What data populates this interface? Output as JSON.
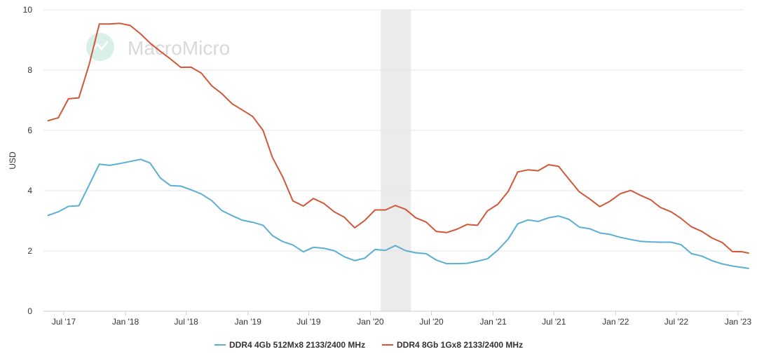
{
  "watermark": {
    "text": "MacroMicro",
    "icon": "macromicro-logo-icon"
  },
  "colors": {
    "series_4gb": "#5aafd2",
    "series_8gb": "#d1573a",
    "grid": "#e6e6e6",
    "shade": "#ebebeb"
  },
  "chart_data": {
    "type": "line",
    "title": "",
    "xlabel": "",
    "ylabel": "USD",
    "ylim": [
      0,
      10
    ],
    "yticks": [
      0,
      2,
      4,
      6,
      8,
      10
    ],
    "xlim": [
      "2017-05",
      "2023-02"
    ],
    "xticks": [
      {
        "date": "2017-07",
        "label": "Jul '17"
      },
      {
        "date": "2018-01",
        "label": "Jan '18"
      },
      {
        "date": "2018-07",
        "label": "Jul '18"
      },
      {
        "date": "2019-01",
        "label": "Jan '19"
      },
      {
        "date": "2019-07",
        "label": "Jul '19"
      },
      {
        "date": "2020-01",
        "label": "Jan '20"
      },
      {
        "date": "2020-07",
        "label": "Jul '20"
      },
      {
        "date": "2021-01",
        "label": "Jan '21"
      },
      {
        "date": "2021-07",
        "label": "Jul '21"
      },
      {
        "date": "2022-01",
        "label": "Jan '22"
      },
      {
        "date": "2022-07",
        "label": "Jul '22"
      },
      {
        "date": "2023-01",
        "label": "Jan '23"
      }
    ],
    "grid": true,
    "legend_position": "bottom",
    "shaded_region": {
      "start": "2020-02",
      "end": "2020-05"
    },
    "series": [
      {
        "name": "DDR4 4Gb 512Mx8 2133/2400 MHz",
        "color": "#5aafd2",
        "points": [
          [
            "2017-05-15",
            3.18
          ],
          [
            "2017-06-15",
            3.3
          ],
          [
            "2017-07-15",
            3.48
          ],
          [
            "2017-08-15",
            3.5
          ],
          [
            "2017-09-15",
            4.2
          ],
          [
            "2017-10-15",
            4.88
          ],
          [
            "2017-11-15",
            4.84
          ],
          [
            "2017-12-15",
            4.9
          ],
          [
            "2018-01-15",
            4.97
          ],
          [
            "2018-02-15",
            5.04
          ],
          [
            "2018-03-15",
            4.92
          ],
          [
            "2018-04-15",
            4.42
          ],
          [
            "2018-05-15",
            4.17
          ],
          [
            "2018-06-15",
            4.15
          ],
          [
            "2018-07-15",
            4.03
          ],
          [
            "2018-08-15",
            3.89
          ],
          [
            "2018-09-15",
            3.67
          ],
          [
            "2018-10-15",
            3.34
          ],
          [
            "2018-11-15",
            3.17
          ],
          [
            "2018-12-15",
            3.02
          ],
          [
            "2019-01-15",
            2.95
          ],
          [
            "2019-02-15",
            2.85
          ],
          [
            "2019-03-15",
            2.51
          ],
          [
            "2019-04-15",
            2.31
          ],
          [
            "2019-05-15",
            2.2
          ],
          [
            "2019-06-15",
            1.97
          ],
          [
            "2019-07-15",
            2.12
          ],
          [
            "2019-08-15",
            2.09
          ],
          [
            "2019-09-15",
            2.01
          ],
          [
            "2019-10-15",
            1.81
          ],
          [
            "2019-11-15",
            1.68
          ],
          [
            "2019-12-15",
            1.76
          ],
          [
            "2020-01-15",
            2.05
          ],
          [
            "2020-02-15",
            2.02
          ],
          [
            "2020-03-15",
            2.18
          ],
          [
            "2020-04-15",
            2.01
          ],
          [
            "2020-05-15",
            1.94
          ],
          [
            "2020-06-15",
            1.91
          ],
          [
            "2020-07-15",
            1.7
          ],
          [
            "2020-08-15",
            1.58
          ],
          [
            "2020-09-15",
            1.58
          ],
          [
            "2020-10-15",
            1.59
          ],
          [
            "2020-11-15",
            1.66
          ],
          [
            "2020-12-15",
            1.74
          ],
          [
            "2021-01-15",
            2.03
          ],
          [
            "2021-02-15",
            2.4
          ],
          [
            "2021-03-15",
            2.9
          ],
          [
            "2021-04-15",
            3.03
          ],
          [
            "2021-05-15",
            2.98
          ],
          [
            "2021-06-15",
            3.1
          ],
          [
            "2021-07-15",
            3.16
          ],
          [
            "2021-08-15",
            3.05
          ],
          [
            "2021-09-15",
            2.79
          ],
          [
            "2021-10-15",
            2.74
          ],
          [
            "2021-11-15",
            2.6
          ],
          [
            "2021-12-15",
            2.55
          ],
          [
            "2022-01-15",
            2.45
          ],
          [
            "2022-02-15",
            2.38
          ],
          [
            "2022-03-15",
            2.32
          ],
          [
            "2022-04-15",
            2.3
          ],
          [
            "2022-05-15",
            2.29
          ],
          [
            "2022-06-15",
            2.29
          ],
          [
            "2022-07-15",
            2.21
          ],
          [
            "2022-08-15",
            1.91
          ],
          [
            "2022-09-15",
            1.83
          ],
          [
            "2022-10-15",
            1.68
          ],
          [
            "2022-11-15",
            1.57
          ],
          [
            "2022-12-15",
            1.5
          ],
          [
            "2023-01-15",
            1.45
          ],
          [
            "2023-02-01",
            1.42
          ]
        ]
      },
      {
        "name": "DDR4 8Gb 1Gx8 2133/2400 MHz",
        "color": "#d1573a",
        "points": [
          [
            "2017-05-15",
            6.32
          ],
          [
            "2017-06-15",
            6.42
          ],
          [
            "2017-07-15",
            7.05
          ],
          [
            "2017-08-15",
            7.08
          ],
          [
            "2017-09-15",
            8.2
          ],
          [
            "2017-10-15",
            9.53
          ],
          [
            "2017-11-15",
            9.53
          ],
          [
            "2017-12-15",
            9.55
          ],
          [
            "2018-01-15",
            9.48
          ],
          [
            "2018-02-15",
            9.2
          ],
          [
            "2018-03-15",
            8.9
          ],
          [
            "2018-04-15",
            8.62
          ],
          [
            "2018-05-15",
            8.37
          ],
          [
            "2018-06-15",
            8.09
          ],
          [
            "2018-07-15",
            8.1
          ],
          [
            "2018-08-15",
            7.9
          ],
          [
            "2018-09-15",
            7.48
          ],
          [
            "2018-10-15",
            7.22
          ],
          [
            "2018-11-15",
            6.88
          ],
          [
            "2018-12-15",
            6.68
          ],
          [
            "2019-01-15",
            6.46
          ],
          [
            "2019-02-15",
            6.0
          ],
          [
            "2019-03-15",
            5.1
          ],
          [
            "2019-04-15",
            4.45
          ],
          [
            "2019-05-15",
            3.66
          ],
          [
            "2019-06-15",
            3.49
          ],
          [
            "2019-07-15",
            3.74
          ],
          [
            "2019-08-15",
            3.58
          ],
          [
            "2019-09-15",
            3.3
          ],
          [
            "2019-10-15",
            3.12
          ],
          [
            "2019-11-15",
            2.77
          ],
          [
            "2019-12-15",
            3.01
          ],
          [
            "2020-01-15",
            3.36
          ],
          [
            "2020-02-15",
            3.36
          ],
          [
            "2020-03-15",
            3.51
          ],
          [
            "2020-04-15",
            3.38
          ],
          [
            "2020-05-15",
            3.1
          ],
          [
            "2020-06-15",
            2.96
          ],
          [
            "2020-07-15",
            2.65
          ],
          [
            "2020-08-15",
            2.61
          ],
          [
            "2020-09-15",
            2.72
          ],
          [
            "2020-10-15",
            2.88
          ],
          [
            "2020-11-15",
            2.85
          ],
          [
            "2020-12-15",
            3.33
          ],
          [
            "2021-01-15",
            3.55
          ],
          [
            "2021-02-15",
            3.98
          ],
          [
            "2021-03-15",
            4.62
          ],
          [
            "2021-04-15",
            4.69
          ],
          [
            "2021-05-15",
            4.66
          ],
          [
            "2021-06-15",
            4.86
          ],
          [
            "2021-07-15",
            4.81
          ],
          [
            "2021-08-15",
            4.38
          ],
          [
            "2021-09-15",
            3.96
          ],
          [
            "2021-10-15",
            3.73
          ],
          [
            "2021-11-15",
            3.47
          ],
          [
            "2021-12-15",
            3.65
          ],
          [
            "2022-01-15",
            3.9
          ],
          [
            "2022-02-15",
            4.01
          ],
          [
            "2022-03-15",
            3.85
          ],
          [
            "2022-04-15",
            3.7
          ],
          [
            "2022-05-15",
            3.44
          ],
          [
            "2022-06-15",
            3.3
          ],
          [
            "2022-07-15",
            3.08
          ],
          [
            "2022-08-15",
            2.8
          ],
          [
            "2022-09-15",
            2.65
          ],
          [
            "2022-10-15",
            2.43
          ],
          [
            "2022-11-15",
            2.28
          ],
          [
            "2022-12-15",
            1.98
          ],
          [
            "2023-01-15",
            1.97
          ],
          [
            "2023-02-01",
            1.93
          ]
        ]
      }
    ]
  }
}
